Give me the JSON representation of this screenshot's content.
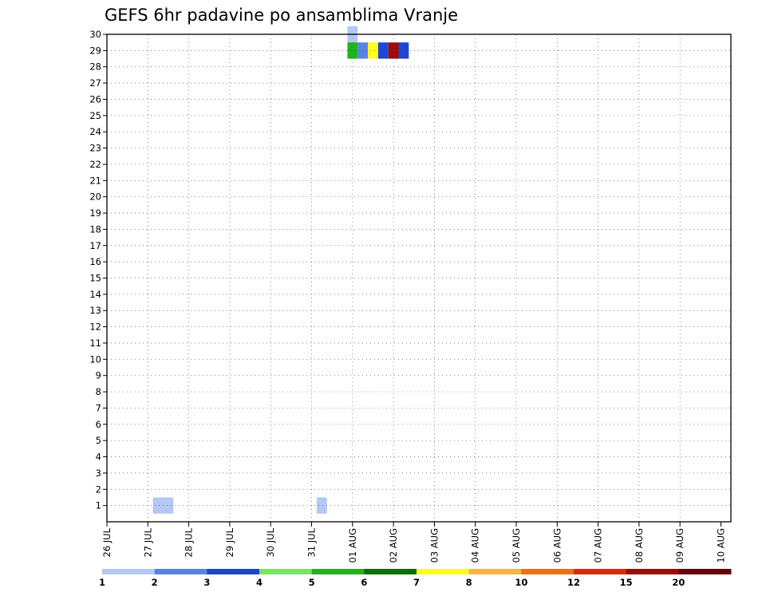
{
  "chart_data": {
    "type": "heatmap",
    "title": "GEFS 6hr padavine po ansamblima Vranje",
    "xlabel": "",
    "ylabel": "",
    "x_ticks": [
      "26 JUL",
      "27 JUL",
      "28 JUL",
      "29 JUL",
      "30 JUL",
      "31 JUL",
      "01 AUG",
      "02 AUG",
      "03 AUG",
      "04 AUG",
      "05 AUG",
      "06 AUG",
      "07 AUG",
      "08 AUG",
      "09 AUG",
      "10 AUG"
    ],
    "y_ticks": [
      1,
      2,
      3,
      4,
      5,
      6,
      7,
      8,
      9,
      10,
      11,
      12,
      13,
      14,
      15,
      16,
      17,
      18,
      19,
      20,
      21,
      22,
      23,
      24,
      25,
      26,
      27,
      28,
      29,
      30
    ],
    "x_range_days": [
      0,
      15.3
    ],
    "y_range": [
      0,
      30
    ],
    "grid": true,
    "legend_position": "bottom",
    "legend": {
      "labels": [
        "1",
        "2",
        "3",
        "4",
        "5",
        "6",
        "7",
        "8",
        "10",
        "12",
        "15",
        "20"
      ],
      "colors": [
        "#b4c8f5",
        "#5a82e6",
        "#1e46d2",
        "#78e65a",
        "#1eb41e",
        "#0a6e0a",
        "#ffff1e",
        "#ffb43c",
        "#f56e0a",
        "#dc280a",
        "#a00a0a",
        "#64000a"
      ]
    },
    "cell_width_days": 0.25,
    "cells": [
      {
        "x": "27 JUL 06Z",
        "member": 1,
        "class": 1
      },
      {
        "x": "27 JUL 12Z",
        "member": 1,
        "class": 1
      },
      {
        "x": "31 JUL 06Z",
        "member": 1,
        "class": 1
      },
      {
        "x": "01 AUG 00Z",
        "member": 30,
        "class": 1
      },
      {
        "x": "01 AUG 00Z",
        "member": 29,
        "class": 5
      },
      {
        "x": "01 AUG 06Z",
        "member": 29,
        "class": 2
      },
      {
        "x": "01 AUG 12Z",
        "member": 29,
        "class": 7
      },
      {
        "x": "01 AUG 18Z",
        "member": 29,
        "class": 3
      },
      {
        "x": "02 AUG 00Z",
        "member": 29,
        "class": 11
      },
      {
        "x": "02 AUG 06Z",
        "member": 29,
        "class": 3
      }
    ]
  }
}
